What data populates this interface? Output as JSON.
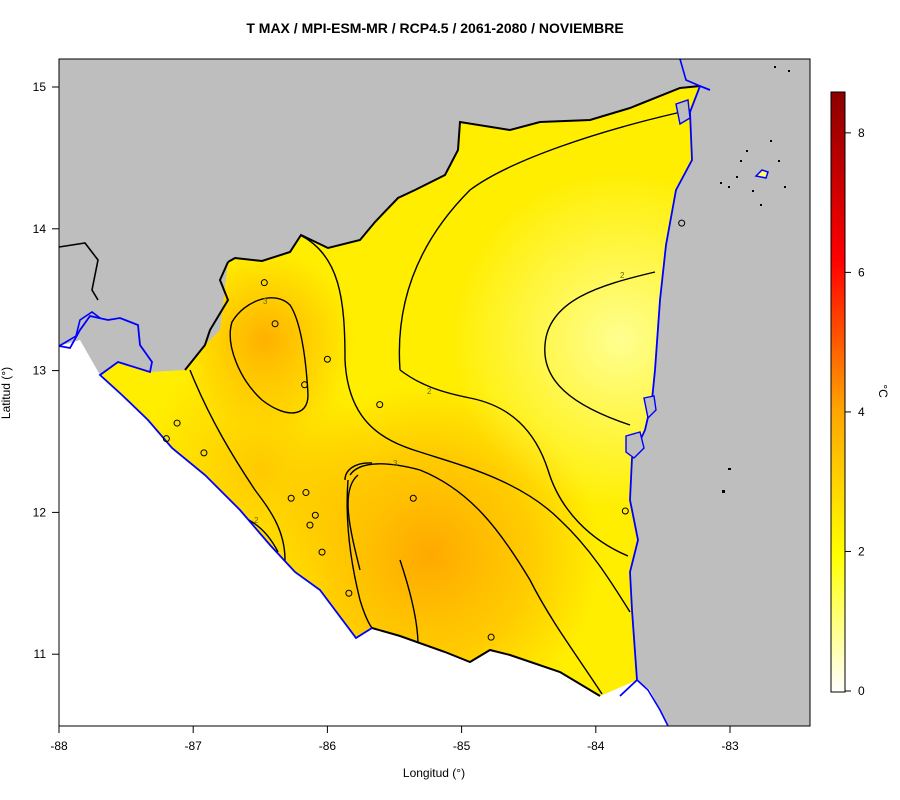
{
  "title": "T MAX / MPI-ESM-MR / RCP4.5 / 2061-2080 / NOVIEMBRE",
  "xlabel": "Longitud (°)",
  "ylabel": "Latitud (°)",
  "legend": {
    "unit": "°C",
    "ticks": [
      "0",
      "2",
      "4",
      "6",
      "8"
    ],
    "range": [
      0,
      8.6
    ],
    "colors": [
      "#ffffff",
      "#ffff00",
      "#ffa500",
      "#ff0000",
      "#8b0000"
    ]
  },
  "x_axis": {
    "ticks": [
      "-88",
      "-87",
      "-86",
      "-85",
      "-84",
      "-83"
    ],
    "range": [
      -88,
      -82.4
    ]
  },
  "y_axis": {
    "ticks": [
      "11",
      "12",
      "13",
      "14",
      "15"
    ],
    "range": [
      10.5,
      15.2
    ]
  },
  "contour_labels": [
    "3",
    "3",
    "2",
    "2",
    "2"
  ],
  "colors": {
    "land_outside": "#bebebe",
    "sea": "#ffffff",
    "coastline": "#0000ff",
    "border": "#000000",
    "contour": "#000000",
    "warm_core": "#ffad00",
    "cool_core": "#ffff90"
  },
  "stations": [
    {
      "lon": -86.47,
      "lat": 13.62
    },
    {
      "lon": -86.39,
      "lat": 13.33
    },
    {
      "lon": -86.0,
      "lat": 13.08
    },
    {
      "lon": -86.17,
      "lat": 12.9
    },
    {
      "lon": -85.61,
      "lat": 12.76
    },
    {
      "lon": -87.12,
      "lat": 12.63
    },
    {
      "lon": -87.2,
      "lat": 12.52
    },
    {
      "lon": -86.92,
      "lat": 12.42
    },
    {
      "lon": -86.27,
      "lat": 12.1
    },
    {
      "lon": -86.16,
      "lat": 12.14
    },
    {
      "lon": -86.09,
      "lat": 11.98
    },
    {
      "lon": -86.13,
      "lat": 11.91
    },
    {
      "lon": -86.04,
      "lat": 11.72
    },
    {
      "lon": -85.84,
      "lat": 11.43
    },
    {
      "lon": -85.36,
      "lat": 12.1
    },
    {
      "lon": -84.78,
      "lat": 11.12
    },
    {
      "lon": -83.78,
      "lat": 12.01
    },
    {
      "lon": -83.36,
      "lat": 14.04
    }
  ]
}
